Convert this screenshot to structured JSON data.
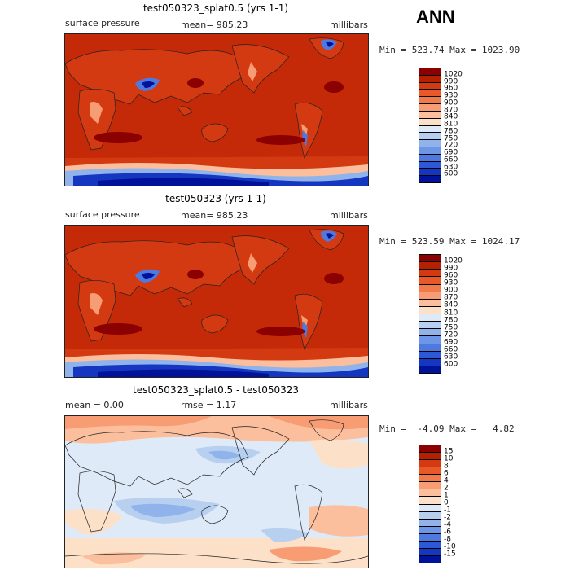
{
  "season": "ANN",
  "panels": [
    {
      "title": "test050323_splat0.5 (yrs 1-1)",
      "field": "surface pressure",
      "stat": "mean= 985.23",
      "units": "millibars",
      "minmax": "Min = 523.74 Max = 1023.90"
    },
    {
      "title": "test050323 (yrs 1-1)",
      "field": "surface pressure",
      "stat": "mean= 985.23",
      "units": "millibars",
      "minmax": "Min = 523.59 Max = 1024.17"
    },
    {
      "title": "test050323_splat0.5 - test050323",
      "field": "mean =    0.00",
      "stat": "rmse =    1.17",
      "units": "millibars",
      "minmax": "Min =  -4.09 Max =   4.82"
    }
  ],
  "chart_data": [
    {
      "type": "heatmap",
      "title": "test050323_splat0.5 (yrs 1-1)",
      "variable": "surface pressure",
      "units": "millibars",
      "mean": 985.23,
      "min": 523.74,
      "max": 1023.9,
      "colorbar": {
        "levels": [
          1020,
          990,
          960,
          930,
          900,
          870,
          840,
          810,
          780,
          750,
          720,
          690,
          660,
          630,
          600
        ],
        "colors": [
          "#8b0000",
          "#b52000",
          "#d43a12",
          "#e85828",
          "#f27a4a",
          "#f89c74",
          "#fbbf9e",
          "#fde0c8",
          "#dfeaf8",
          "#b8d0f0",
          "#8fb3ea",
          "#6e96e6",
          "#4d79e0",
          "#2d58d6",
          "#1436c0",
          "#00129a"
        ]
      }
    },
    {
      "type": "heatmap",
      "title": "test050323 (yrs 1-1)",
      "variable": "surface pressure",
      "units": "millibars",
      "mean": 985.23,
      "min": 523.59,
      "max": 1024.17,
      "colorbar": {
        "levels": [
          1020,
          990,
          960,
          930,
          900,
          870,
          840,
          810,
          780,
          750,
          720,
          690,
          660,
          630,
          600
        ],
        "colors": [
          "#8b0000",
          "#b52000",
          "#d43a12",
          "#e85828",
          "#f27a4a",
          "#f89c74",
          "#fbbf9e",
          "#fde0c8",
          "#dfeaf8",
          "#b8d0f0",
          "#8fb3ea",
          "#6e96e6",
          "#4d79e0",
          "#2d58d6",
          "#1436c0",
          "#00129a"
        ]
      }
    },
    {
      "type": "heatmap",
      "title": "test050323_splat0.5 - test050323",
      "units": "millibars",
      "mean": 0.0,
      "rmse": 1.17,
      "min": -4.09,
      "max": 4.82,
      "colorbar": {
        "levels": [
          15,
          10,
          8,
          6,
          4,
          2,
          1,
          0,
          -1,
          -2,
          -4,
          -6,
          -8,
          -10,
          -15
        ],
        "colors": [
          "#8b0000",
          "#b52000",
          "#d43a12",
          "#e85828",
          "#f27a4a",
          "#f89c74",
          "#fbbf9e",
          "#fde0c8",
          "#dfeaf8",
          "#b8d0f0",
          "#8fb3ea",
          "#6e96e6",
          "#4d79e0",
          "#2d58d6",
          "#1436c0",
          "#00129a"
        ]
      }
    }
  ]
}
